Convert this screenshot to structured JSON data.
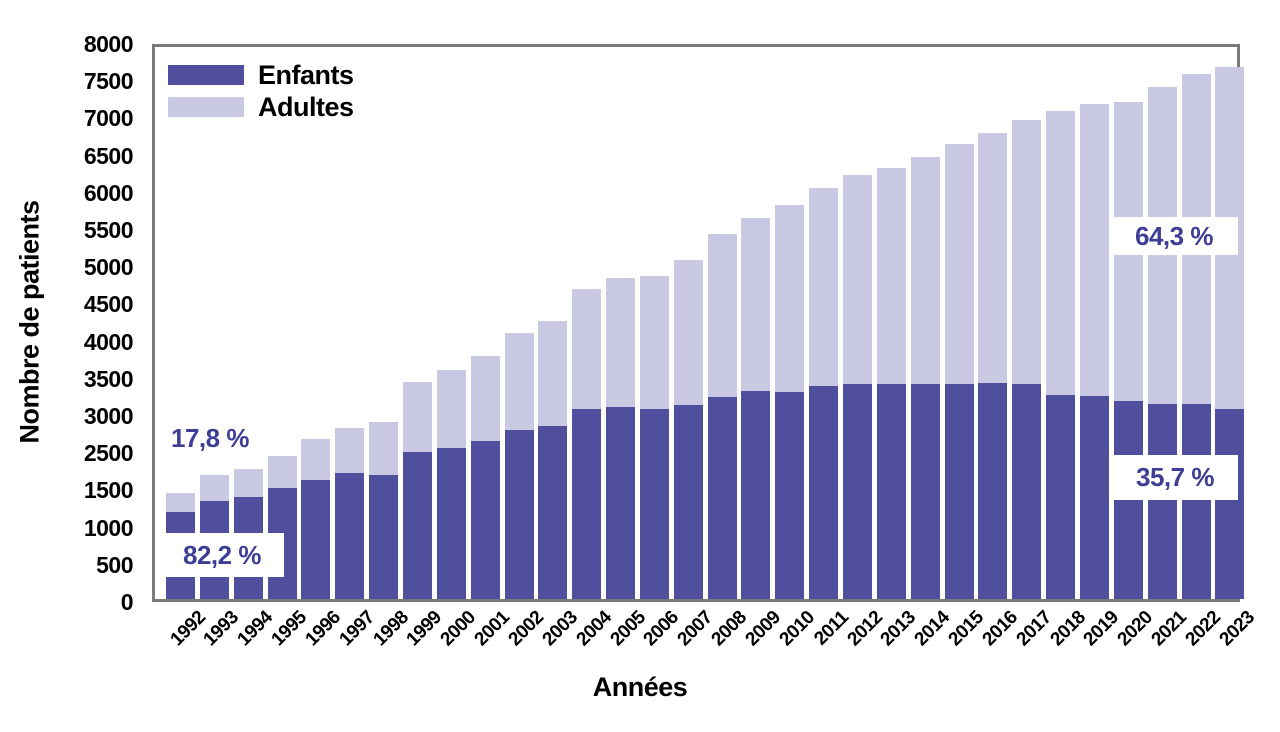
{
  "chart_data": {
    "type": "bar",
    "stacked": true,
    "xlabel": "Années",
    "ylabel": "Nombre de patients",
    "ylim": [
      0,
      8000
    ],
    "grid": false,
    "legend_position": "top-left",
    "y_tick_labels": [
      "8000",
      "7500",
      "7000",
      "6500",
      "6000",
      "5500",
      "5000",
      "4500",
      "4000",
      "3500",
      "3000",
      "2500",
      "1500",
      "1000",
      "500",
      "0"
    ],
    "categories": [
      "1992",
      "1993",
      "1994",
      "1995",
      "1996",
      "1997",
      "1998",
      "1999",
      "2000",
      "2001",
      "2002",
      "2003",
      "2004",
      "2005",
      "2006",
      "2007",
      "2008",
      "2009",
      "2010",
      "2011",
      "2012",
      "2013",
      "2014",
      "2015",
      "2016",
      "2017",
      "2018",
      "2019",
      "2020",
      "2021",
      "2022",
      "2023"
    ],
    "series": [
      {
        "name": "Enfants",
        "color": "#4f4f9d",
        "values": [
          1262,
          1420,
          1478,
          1606,
          1720,
          1821,
          1792,
          2136,
          2194,
          2294,
          2452,
          2509,
          2753,
          2781,
          2753,
          2810,
          2925,
          3011,
          2996,
          3082,
          3111,
          3111,
          3111,
          3111,
          3124,
          3111,
          2954,
          2939,
          2867,
          2824,
          2824,
          2754
        ]
      },
      {
        "name": "Adultes",
        "color": "#c9c9e4",
        "values": [
          273,
          370,
          400,
          473,
          603,
          659,
          774,
          1004,
          1132,
          1233,
          1405,
          1520,
          1734,
          1878,
          1921,
          2108,
          2365,
          2509,
          2710,
          2868,
          3040,
          3140,
          3298,
          3484,
          3629,
          3828,
          4114,
          4229,
          4330,
          4603,
          4789,
          4959
        ]
      }
    ],
    "annotations": [
      {
        "text": "17,8 %",
        "boxed": false,
        "box": {
          "x": 158,
          "y": 423,
          "w": 104,
          "h": 30
        }
      },
      {
        "text": "82,2 %",
        "boxed": true,
        "box": {
          "x": 160,
          "y": 533,
          "w": 124,
          "h": 44
        }
      },
      {
        "text": "64,3 %",
        "boxed": true,
        "box": {
          "x": 1110,
          "y": 217,
          "w": 128,
          "h": 38
        }
      },
      {
        "text": "35,7 %",
        "boxed": true,
        "box": {
          "x": 1112,
          "y": 455,
          "w": 126,
          "h": 45
        }
      }
    ],
    "annotation_color": "#3e3e96",
    "frame_color": "#7b7b7b"
  }
}
